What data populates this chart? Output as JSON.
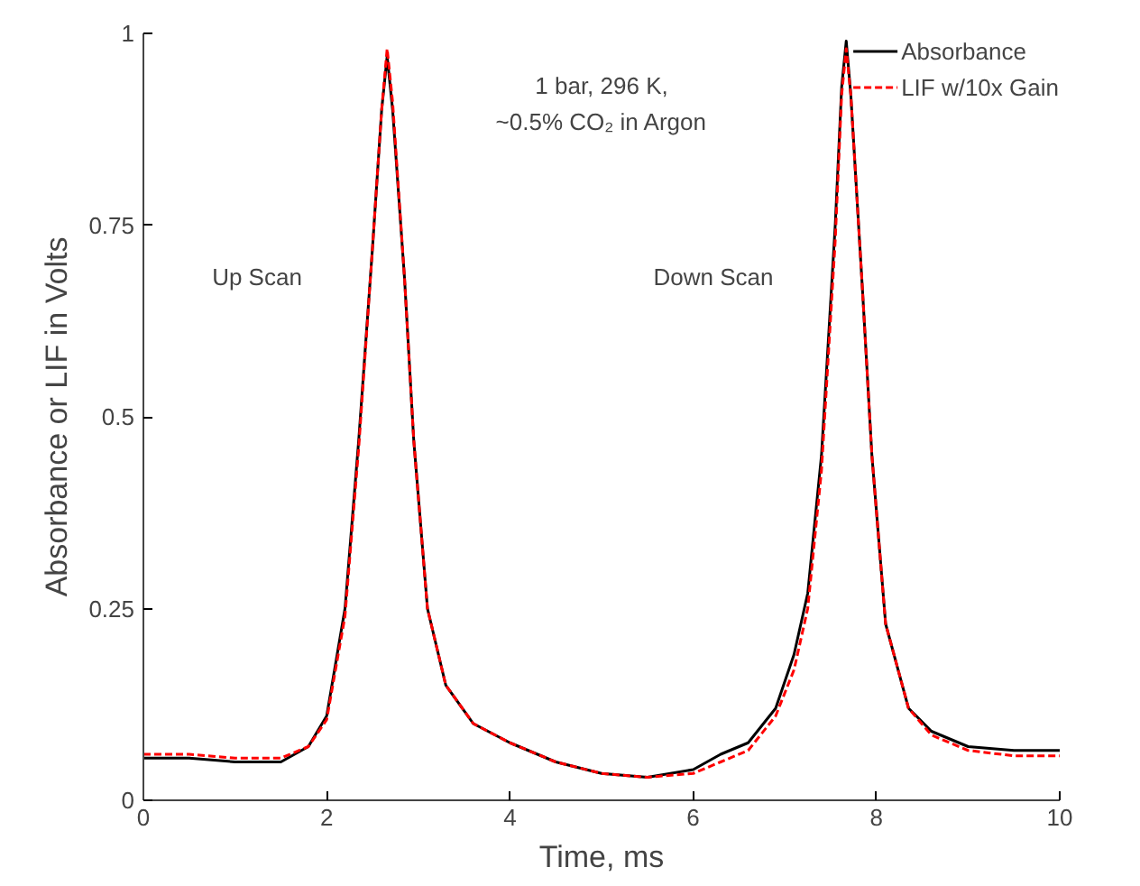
{
  "chart_data": {
    "type": "line",
    "xlabel": "Time, ms",
    "ylabel": "Absorbance or LIF in Volts",
    "x": [
      0,
      0.5,
      1,
      1.5,
      1.8,
      2.0,
      2.2,
      2.35,
      2.5,
      2.6,
      2.66,
      2.72,
      2.85,
      2.95,
      3.1,
      3.3,
      3.6,
      4.0,
      4.5,
      5,
      5.5,
      6,
      6.3,
      6.6,
      6.9,
      7.1,
      7.25,
      7.4,
      7.55,
      7.62,
      7.67,
      7.72,
      7.85,
      7.95,
      8.1,
      8.35,
      8.6,
      9,
      9.5,
      10
    ],
    "series": [
      {
        "name": "Absorbance",
        "color": "#000000",
        "line_style": "solid",
        "values": [
          0.055,
          0.055,
          0.05,
          0.05,
          0.07,
          0.11,
          0.25,
          0.47,
          0.72,
          0.9,
          0.97,
          0.9,
          0.68,
          0.47,
          0.25,
          0.15,
          0.1,
          0.075,
          0.05,
          0.035,
          0.03,
          0.04,
          0.06,
          0.075,
          0.12,
          0.19,
          0.27,
          0.45,
          0.75,
          0.93,
          0.99,
          0.92,
          0.66,
          0.45,
          0.23,
          0.12,
          0.09,
          0.07,
          0.065,
          0.065
        ]
      },
      {
        "name": "LIF w/10x Gain",
        "color": "#ff0000",
        "line_style": "dashed",
        "values": [
          0.06,
          0.06,
          0.055,
          0.055,
          0.07,
          0.105,
          0.24,
          0.46,
          0.72,
          0.9,
          0.98,
          0.91,
          0.68,
          0.47,
          0.25,
          0.15,
          0.1,
          0.075,
          0.05,
          0.035,
          0.03,
          0.035,
          0.05,
          0.065,
          0.11,
          0.17,
          0.25,
          0.43,
          0.73,
          0.92,
          0.98,
          0.92,
          0.66,
          0.45,
          0.23,
          0.12,
          0.085,
          0.065,
          0.058,
          0.058
        ]
      }
    ],
    "xlim": [
      0,
      10
    ],
    "xticks": [
      0,
      2,
      4,
      6,
      8,
      10
    ],
    "ylim": [
      0,
      1
    ],
    "yticks": [
      0,
      0.25,
      0.5,
      0.75,
      1
    ],
    "annotations": [
      "1 bar, 296 K,",
      "~0.5% CO₂ in Argon",
      "Up Scan",
      "Down Scan"
    ],
    "grid": false,
    "legend": "top right"
  }
}
